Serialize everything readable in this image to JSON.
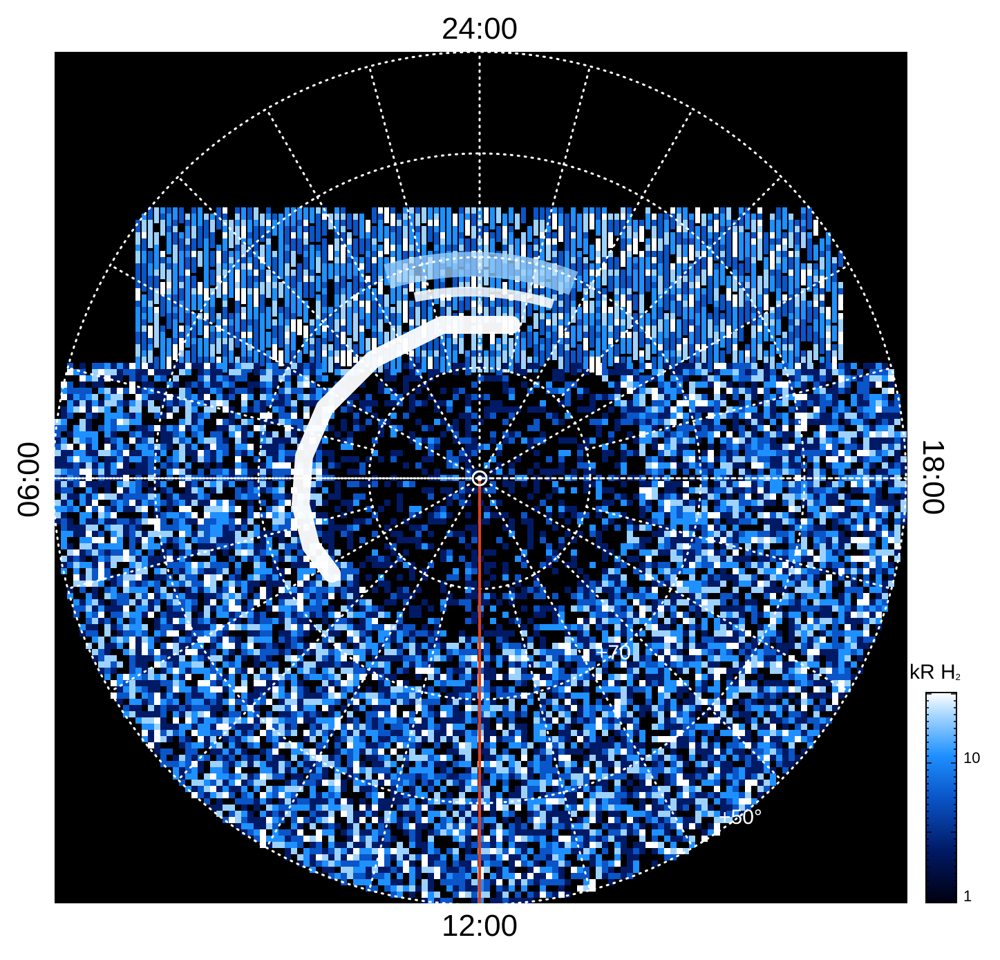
{
  "figure": {
    "local_time_labels": {
      "top": "24:00",
      "bottom": "12:00",
      "left": "06:00",
      "right": "18:00"
    },
    "latitude_labels": {
      "inner": "+70",
      "outer": "+50°"
    },
    "colorbar": {
      "title": "kR H",
      "title_subscript": "2",
      "ticks": [
        "10",
        "1"
      ],
      "colors": [
        "#000010",
        "#001a66",
        "#0a55c8",
        "#1e90ff",
        "#9dd2ff",
        "#ffffff"
      ]
    },
    "colors": {
      "background": "#000000",
      "grid": "#ffffff",
      "meridian_line": "#e0401c",
      "aurora_oval": "#ffffff"
    }
  }
}
